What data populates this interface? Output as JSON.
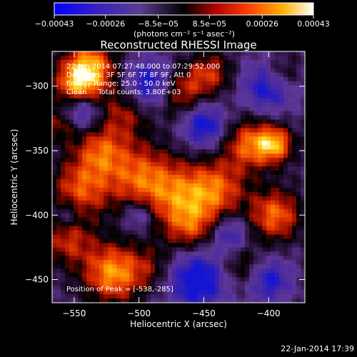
{
  "chart_data": {
    "type": "heatmap",
    "title": "Reconstructed RHESSI Image",
    "xlabel": "Heliocentric X (arcsec)",
    "ylabel": "Heliocentric Y (arcsec)",
    "xlim": [
      -567,
      -372
    ],
    "ylim": [
      -468,
      -273
    ],
    "x_ticks": [
      -550,
      -500,
      -450,
      -400
    ],
    "y_ticks": [
      -450,
      -400,
      -350,
      -300
    ],
    "x_tick_labels": [
      "−550",
      "−500",
      "−450",
      "−400"
    ],
    "y_tick_labels": [
      "−450",
      "−400",
      "−350",
      "−300"
    ],
    "grid": false,
    "colorbar": {
      "range": [
        -0.00043,
        0.00043
      ],
      "ticks": [
        -0.00043,
        -0.00026,
        -8.5e-05,
        8.5e-05,
        0.00026,
        0.00043
      ],
      "tick_labels": [
        "−0.00043",
        "−0.00026",
        "−8.5e−05",
        "8.5e−05",
        "0.00026",
        "0.00043"
      ],
      "units": "(photons cm⁻² s⁻¹ asec⁻²)"
    },
    "annotations": [
      "22-Jan-2014 07:27:48.000 to 07:29:52.000",
      "Detectors: 3F 5F 6F 7F 8F 9F, Att 0",
      "Energy Range: 25.0 - 50.0 keV",
      "Clean     Total counts: 3.80E+03"
    ],
    "peak_label": "Position of Peak = [-538,-285]",
    "peak": [
      -538,
      -285
    ],
    "color_scale": [
      "#0000ff",
      "#5a3ca0",
      "#000000",
      "#b00000",
      "#ff6000",
      "#ffd000",
      "#ffffff"
    ]
  },
  "footer": {
    "timestamp": "22-Jan-2014 17:39"
  }
}
